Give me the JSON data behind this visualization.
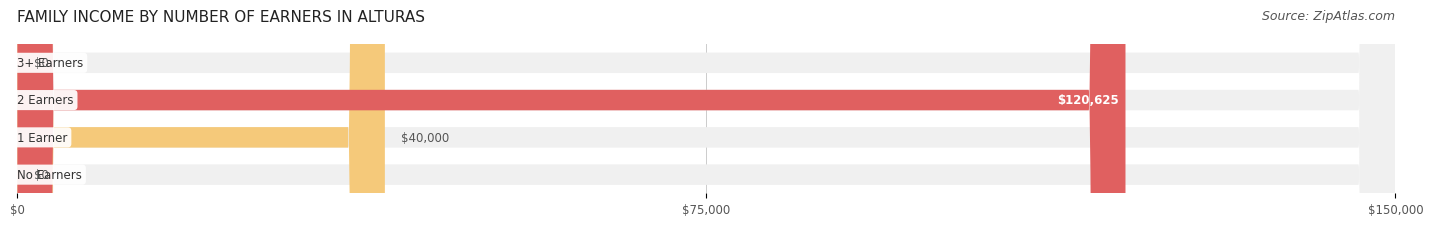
{
  "title": "FAMILY INCOME BY NUMBER OF EARNERS IN ALTURAS",
  "source": "Source: ZipAtlas.com",
  "categories": [
    "No Earners",
    "1 Earner",
    "2 Earners",
    "3+ Earners"
  ],
  "values": [
    0,
    40000,
    120625,
    0
  ],
  "labels": [
    "$0",
    "$40,000",
    "$120,625",
    "$0"
  ],
  "bar_colors": [
    "#f08090",
    "#f5c97a",
    "#e06060",
    "#a8c0e8"
  ],
  "label_colors": [
    "#555555",
    "#555555",
    "#ffffff",
    "#555555"
  ],
  "bar_bg_color": "#f0f0f0",
  "xlim": [
    0,
    150000
  ],
  "xticks": [
    0,
    75000,
    150000
  ],
  "xticklabels": [
    "$0",
    "$75,000",
    "$150,000"
  ],
  "title_fontsize": 11,
  "source_fontsize": 9,
  "bar_height": 0.55,
  "fig_bg_color": "#ffffff",
  "bar_bg_alpha": 1.0,
  "label_inside_threshold": 100000
}
